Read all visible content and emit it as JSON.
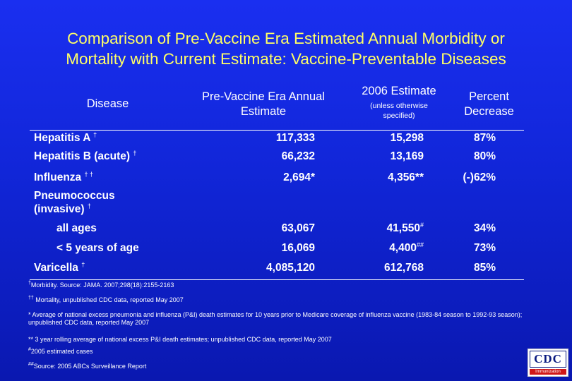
{
  "title": {
    "line1": "Comparison of Pre-Vaccine Era Estimated Annual Morbidity or",
    "line2": "Mortality with Current Estimate: Vaccine-Preventable Diseases"
  },
  "headers": {
    "disease": "Disease",
    "pre_line1": "Pre-Vaccine Era Annual",
    "pre_line2": "Estimate",
    "est_line1": "2006 Estimate",
    "est_sub1": "(unless otherwise",
    "est_sub2": "specified)",
    "pct_line1": "Percent",
    "pct_line2": "Decrease"
  },
  "rows": {
    "hepa": {
      "label": "Hepatitis A",
      "mark": "†",
      "pre": "117,333",
      "est": "15,298",
      "pct": "87%"
    },
    "hepb": {
      "label": "Hepatitis B (acute)",
      "mark": "†",
      "pre": "66,232",
      "est": "13,169",
      "pct": "80%"
    },
    "flu": {
      "label": "Influenza",
      "mark": "† †",
      "pre": "2,694*",
      "est": "4,356**",
      "pct": "(-)62%"
    },
    "pneumo": {
      "label_line1": "Pneumococcus",
      "label_line2": "(invasive)",
      "mark": "†"
    },
    "pneumo_all": {
      "label": "all ages",
      "pre": "63,067",
      "est": "41,550",
      "est_mark": "#",
      "pct": "34%"
    },
    "pneumo_u5": {
      "label": "< 5 years of age",
      "pre": "16,069",
      "est": "4,400",
      "est_mark": "##",
      "pct": "73%"
    },
    "varicella": {
      "label": "Varicella",
      "mark": "†",
      "pre": "4,085,120",
      "est": "612,768",
      "pct": "85%"
    }
  },
  "footnotes": {
    "f1_mark": "†",
    "f1": "Morbidity.  Source:  JAMA. 2007;298(18):2155-2163",
    "f2_mark": "††",
    "f2": " Mortality, unpublished CDC data, reported May 2007",
    "f3": "* Average of national excess pneumonia and influenza (P&I) death estimates for 10 years prior to Medicare coverage of influenza vaccine (1983-84 season to 1992-93 season); unpublished CDC data, reported May 2007",
    "f4": "** 3 year rolling average of national excess P&I death estimates; unpublished CDC data, reported May 2007",
    "f5_mark": "#",
    "f5": "2005  estimated cases",
    "f6_mark": "##",
    "f6": "Source: 2005  ABCs Surveillance Report"
  },
  "logo": {
    "text": "CDC",
    "bar": "Immunization"
  },
  "colors": {
    "background": "#1126d8",
    "title": "#ffff66",
    "text": "#ffffff"
  }
}
